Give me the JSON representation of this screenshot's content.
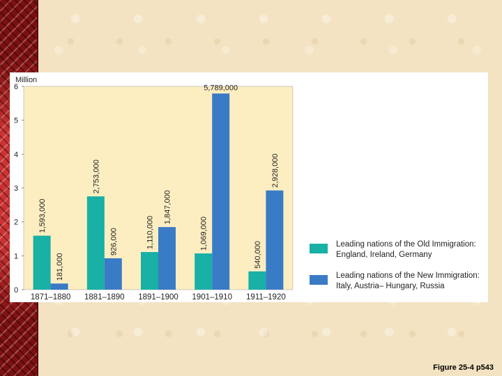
{
  "caption": "Figure 25-4 p543",
  "colors": {
    "old": "#19b0a6",
    "new": "#3a7bc6",
    "plot_bg": "#fdeec2"
  },
  "legend": {
    "old": [
      "Leading nations of the Old Immigration:",
      "England, Ireland, Germany"
    ],
    "new": [
      "Leading nations of the New Immigration:",
      "Italy, Austria– Hungary, Russia"
    ]
  },
  "chart_data": {
    "type": "bar",
    "ylabel": "Million",
    "ylim": [
      0,
      6
    ],
    "yticks": [
      "0",
      "1",
      "2",
      "3",
      "4",
      "5",
      "6"
    ],
    "categories": [
      "1871–1880",
      "1881–1890",
      "1891–1900",
      "1901–1910",
      "1911–1920"
    ],
    "series": [
      {
        "values": [
          1593000,
          2753000,
          1110000,
          1069000,
          540000
        ],
        "labels": [
          "1,593,000",
          "2,753,000",
          "1,110,000",
          "1,069,000",
          "540,000"
        ]
      },
      {
        "values": [
          181000,
          926000,
          1847000,
          5789000,
          2928000
        ],
        "labels": [
          "181,000",
          "926,000",
          "1,847,000",
          "5,789,000",
          "2,928,000"
        ]
      }
    ]
  }
}
